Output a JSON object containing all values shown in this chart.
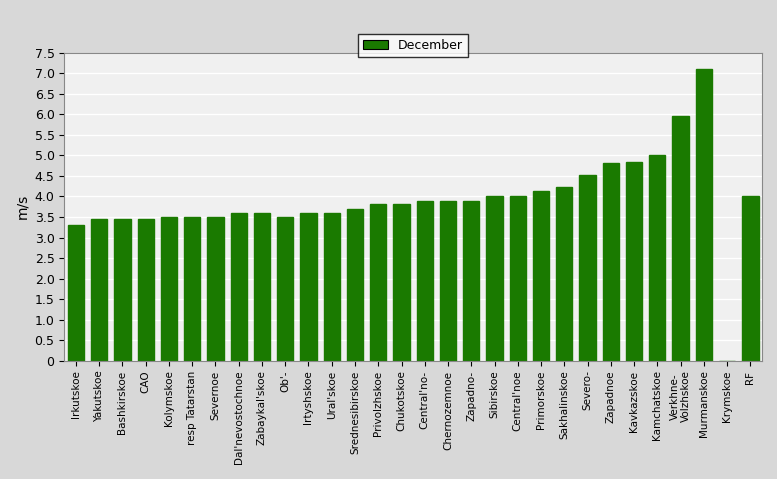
{
  "categories": [
    "Irkutskoe",
    "Yakutskoe",
    "Bashkirskoe",
    "CAO",
    "Kolymskoe",
    "resp Tatarstan",
    "Severnoe",
    "Dal'nevostochnoe",
    "Zabaykal'skoe",
    "Ob'-",
    "Irtyshskoe",
    "Ural'skoe",
    "Srednesibirskoe",
    "Privolzhskoe",
    "Chukotskoe",
    "Central'no-",
    "Chernozemnoe",
    "Zapadno-",
    "Sibirskoe",
    "Central'noe",
    "Primorskoe",
    "Sakhalinskoe",
    "Severo-",
    "Zapadnoe",
    "Kavkazskoe",
    "Kamchatskoe",
    "Verkhne-Volzhskoe",
    "Murmanskoe",
    "Krymskoe",
    "RF"
  ],
  "values": [
    3.3,
    3.45,
    3.45,
    3.45,
    3.5,
    3.5,
    3.5,
    3.6,
    3.6,
    3.5,
    3.6,
    3.6,
    3.7,
    3.82,
    3.82,
    3.9,
    3.9,
    3.9,
    4.02,
    4.02,
    4.12,
    4.22,
    4.52,
    4.82,
    4.85,
    5.02,
    5.95,
    7.1,
    0.0,
    4.02
  ],
  "bar_color": "#1a7a00",
  "ylabel": "m/s",
  "ylim": [
    0,
    7.5
  ],
  "yticks": [
    0,
    0.5,
    1.0,
    1.5,
    2.0,
    2.5,
    3.0,
    3.5,
    4.0,
    4.5,
    5.0,
    5.5,
    6.0,
    6.5,
    7.0,
    7.5
  ],
  "legend_label": "December",
  "background_color": "#e8e8e8",
  "plot_bg_color": "#f0f0f0"
}
